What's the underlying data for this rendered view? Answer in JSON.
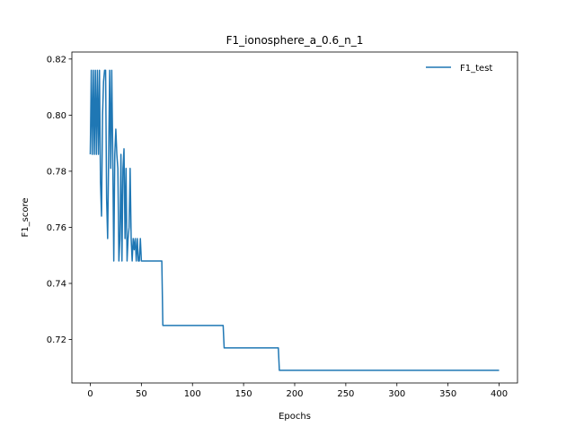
{
  "chart_data": {
    "type": "line",
    "title": "F1_ionosphere_a_0.6_n_1",
    "xlabel": "Epochs",
    "ylabel": "F1_score",
    "xlim": [
      -18,
      418
    ],
    "ylim": [
      0.7045,
      0.8225
    ],
    "xticks": [
      0,
      50,
      100,
      150,
      200,
      250,
      300,
      350,
      400
    ],
    "yticks": [
      0.72,
      0.74,
      0.76,
      0.78,
      0.8,
      0.82
    ],
    "ytick_labels": [
      "0.72",
      "0.74",
      "0.76",
      "0.78",
      "0.80",
      "0.82"
    ],
    "grid": false,
    "legend_position": "top-right",
    "series": [
      {
        "name": "F1_test",
        "color": "#1f77b4",
        "x": [
          0,
          1,
          2,
          3,
          4,
          5,
          6,
          7,
          8,
          9,
          10,
          11,
          12,
          13,
          14,
          15,
          16,
          17,
          18,
          19,
          20,
          21,
          22,
          23,
          24,
          25,
          26,
          27,
          28,
          29,
          30,
          31,
          32,
          33,
          34,
          35,
          36,
          37,
          38,
          39,
          40,
          41,
          42,
          43,
          44,
          45,
          46,
          47,
          48,
          49,
          50,
          51,
          52,
          53,
          54,
          55,
          56,
          57,
          58,
          59,
          60,
          61,
          62,
          63,
          64,
          65,
          66,
          67,
          68,
          69,
          70,
          71,
          72,
          130,
          131,
          132,
          184,
          185,
          186,
          400
        ],
        "y": [
          0.786,
          0.816,
          0.786,
          0.816,
          0.786,
          0.816,
          0.786,
          0.816,
          0.786,
          0.816,
          0.776,
          0.764,
          0.8,
          0.812,
          0.816,
          0.816,
          0.77,
          0.756,
          0.786,
          0.816,
          0.781,
          0.816,
          0.786,
          0.748,
          0.786,
          0.795,
          0.786,
          0.781,
          0.748,
          0.756,
          0.786,
          0.748,
          0.781,
          0.788,
          0.756,
          0.781,
          0.748,
          0.756,
          0.76,
          0.781,
          0.756,
          0.748,
          0.756,
          0.752,
          0.756,
          0.748,
          0.756,
          0.748,
          0.748,
          0.756,
          0.748,
          0.748,
          0.748,
          0.748,
          0.748,
          0.748,
          0.748,
          0.748,
          0.748,
          0.748,
          0.748,
          0.748,
          0.748,
          0.748,
          0.748,
          0.748,
          0.748,
          0.748,
          0.748,
          0.748,
          0.748,
          0.725,
          0.725,
          0.725,
          0.717,
          0.717,
          0.717,
          0.709,
          0.709,
          0.709
        ]
      }
    ]
  }
}
